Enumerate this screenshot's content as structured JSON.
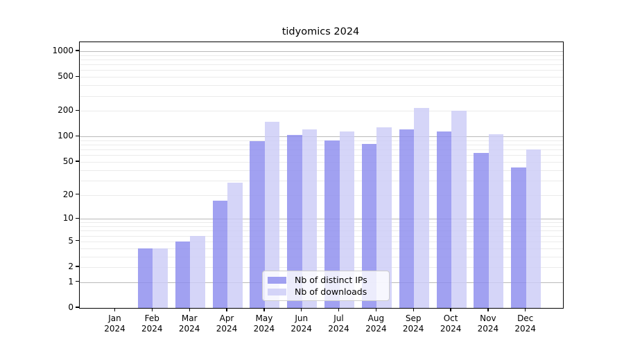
{
  "title": "tidyomics 2024",
  "chart_data": {
    "type": "bar",
    "title": "tidyomics 2024",
    "categories": [
      "Jan 2024",
      "Feb 2024",
      "Mar 2024",
      "Apr 2024",
      "May 2024",
      "Jun 2024",
      "Jul 2024",
      "Aug 2024",
      "Sep 2024",
      "Oct 2024",
      "Nov 2024",
      "Dec 2024"
    ],
    "x_tick_line1": [
      "Jan",
      "Feb",
      "Mar",
      "Apr",
      "May",
      "Jun",
      "Jul",
      "Aug",
      "Sep",
      "Oct",
      "Nov",
      "Dec"
    ],
    "x_tick_line2": [
      "2024",
      "2024",
      "2024",
      "2024",
      "2024",
      "2024",
      "2024",
      "2024",
      "2024",
      "2024",
      "2024",
      "2024"
    ],
    "series": [
      {
        "name": "Nb of distinct IPs",
        "color": "#8c8cee",
        "values": [
          0,
          4,
          5,
          17,
          88,
          105,
          89,
          81,
          122,
          114,
          64,
          43
        ]
      },
      {
        "name": "Nb of downloads",
        "color": "#ccccf7",
        "values": [
          0,
          4,
          6,
          28,
          148,
          122,
          115,
          128,
          215,
          202,
          106,
          70
        ]
      }
    ],
    "bar_opacity": 0.82,
    "y_scale": "log10(value + 1)",
    "y_ticks": [
      0,
      1,
      2,
      5,
      10,
      20,
      50,
      100,
      200,
      500,
      1000
    ],
    "grid": {
      "major_lines": [
        1,
        10,
        100,
        1000
      ],
      "minor_multipliers": [
        2,
        3,
        4,
        5,
        6,
        7,
        8,
        9
      ],
      "minor_decades": [
        1,
        10,
        100
      ]
    },
    "ylim": [
      0,
      1280
    ],
    "legend_position": "bottom-center-inside",
    "colors": {
      "major_grid": "#b9b9b9",
      "minor_grid": "#ebebeb",
      "axis": "#000000",
      "text": "#000000"
    }
  }
}
